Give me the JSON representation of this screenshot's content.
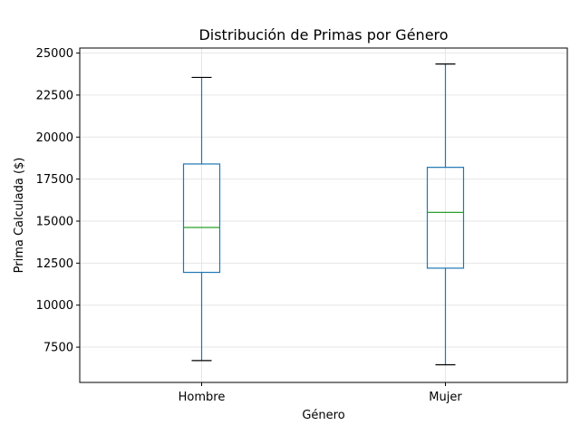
{
  "chart_data": {
    "type": "box",
    "title": "Distribución de Primas por Género",
    "xlabel": "Género",
    "ylabel": "Prima Calculada ($)",
    "categories": [
      "Hombre",
      "Mujer"
    ],
    "boxes": [
      {
        "label": "Hombre",
        "whisker_low": 6700,
        "q1": 11950,
        "median": 14620,
        "q3": 18400,
        "whisker_high": 23550
      },
      {
        "label": "Mujer",
        "whisker_low": 6450,
        "q1": 12200,
        "median": 15520,
        "q3": 18200,
        "whisker_high": 24350
      }
    ],
    "ylim": [
      5400,
      25300
    ],
    "yticks": [
      7500,
      10000,
      12500,
      15000,
      17500,
      20000,
      22500,
      25000
    ],
    "ytick_labels": [
      "7500",
      "10000",
      "12500",
      "15000",
      "17500",
      "20000",
      "22500",
      "25000"
    ],
    "grid": true,
    "colors": {
      "box": "#1f77b4",
      "median": "#2ca02c",
      "caps": "#000000",
      "grid": "#e6e6e6"
    }
  }
}
